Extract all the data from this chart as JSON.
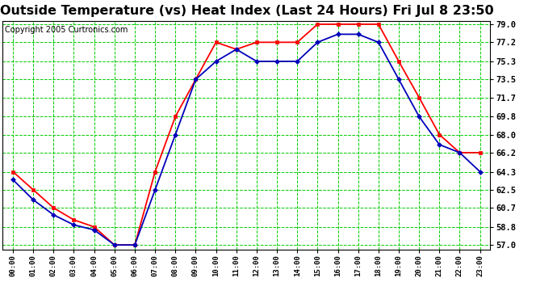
{
  "title": "Outside Temperature (vs) Heat Index (Last 24 Hours) Fri Jul 8 23:50",
  "copyright": "Copyright 2005 Curtronics.com",
  "hours": [
    "00:00",
    "01:00",
    "02:00",
    "03:00",
    "04:00",
    "05:00",
    "06:00",
    "07:00",
    "08:00",
    "09:00",
    "10:00",
    "11:00",
    "12:00",
    "13:00",
    "14:00",
    "15:00",
    "16:00",
    "17:00",
    "18:00",
    "19:00",
    "20:00",
    "21:00",
    "22:00",
    "23:00"
  ],
  "temp_red": [
    64.3,
    62.5,
    60.7,
    59.5,
    58.8,
    57.0,
    57.0,
    64.3,
    69.8,
    73.5,
    77.2,
    76.5,
    77.2,
    77.2,
    77.2,
    79.0,
    79.0,
    79.0,
    79.0,
    75.3,
    71.7,
    68.0,
    66.2,
    66.2
  ],
  "temp_blue": [
    63.5,
    61.5,
    60.0,
    59.0,
    58.5,
    57.0,
    57.0,
    62.5,
    68.0,
    73.5,
    75.3,
    76.5,
    75.3,
    75.3,
    75.3,
    77.2,
    78.0,
    78.0,
    77.2,
    73.5,
    69.8,
    67.0,
    66.2,
    64.3
  ],
  "ylim_min": 57.0,
  "ylim_max": 79.0,
  "yticks": [
    57.0,
    58.8,
    60.7,
    62.5,
    64.3,
    66.2,
    68.0,
    69.8,
    71.7,
    73.5,
    75.3,
    77.2,
    79.0
  ],
  "red_color": "#ff0000",
  "blue_color": "#0000bb",
  "grid_color": "#00cc00",
  "bg_color": "#ffffff",
  "title_fontsize": 11.5,
  "copyright_fontsize": 7.0
}
